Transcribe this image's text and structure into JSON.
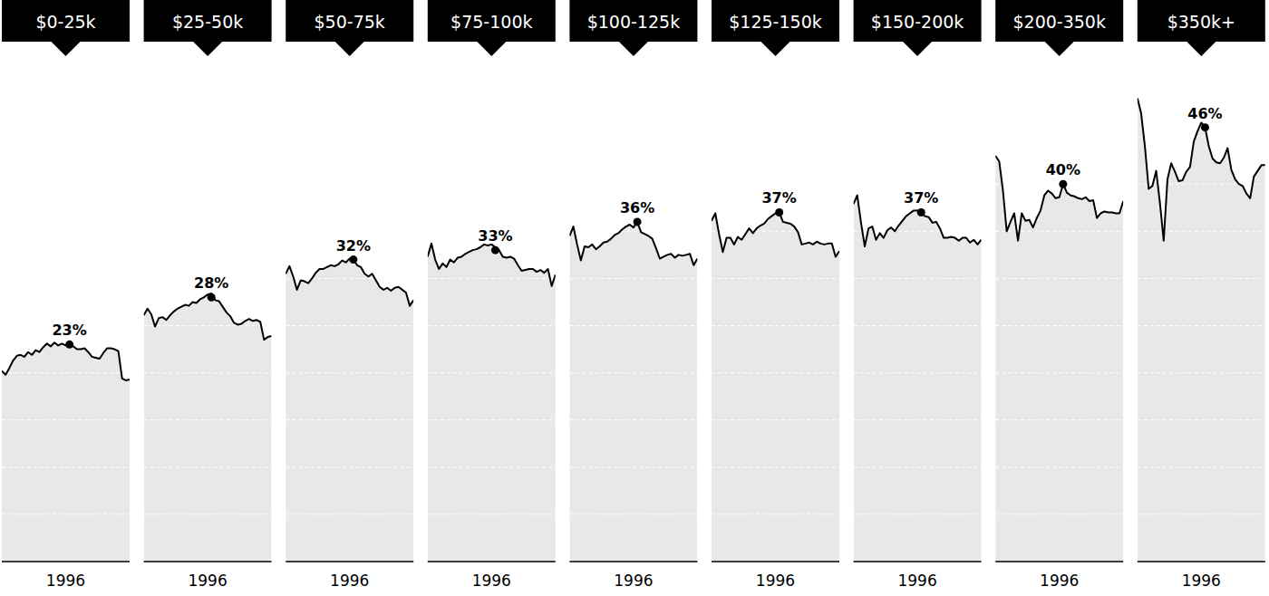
{
  "chart_data": [
    {
      "type": "area",
      "title": "$0-25k",
      "color": "#000000",
      "grid": true,
      "tick_labels": "x",
      "x": [
        1979,
        1980,
        1981,
        1982,
        1983,
        1984,
        1985,
        1986,
        1987,
        1988,
        1989,
        1990,
        1991,
        1992,
        1993,
        1994,
        1995,
        1996,
        1997,
        1998,
        1999,
        2000,
        2001,
        2002,
        2003,
        2004,
        2005,
        2006,
        2007,
        2008,
        2009,
        2010,
        2011,
        2012,
        2013
      ],
      "values": [
        20.2,
        19.8,
        20.5,
        21.3,
        21.8,
        21.9,
        21.7,
        22.2,
        21.9,
        22.4,
        22.2,
        22.7,
        23.1,
        22.8,
        23.2,
        22.9,
        23.1,
        22.9,
        23.0,
        22.8,
        22.5,
        22.5,
        22.6,
        22.2,
        21.7,
        21.6,
        21.5,
        22.1,
        22.6,
        22.6,
        22.5,
        22.3,
        19.4,
        19.2,
        19.3
      ],
      "xlim": [
        1979,
        2013
      ],
      "xticks": [
        1996
      ],
      "ylim": [
        0,
        50
      ],
      "yticks": [
        0,
        5,
        10,
        15,
        20,
        25,
        30,
        35,
        40,
        45,
        50
      ],
      "annotations": [
        {
          "x": 1997,
          "y": 23,
          "text": "23%"
        }
      ]
    },
    {
      "type": "area",
      "title": "$25-50k",
      "color": "#000000",
      "grid": true,
      "tick_labels": "x",
      "x": [
        1979,
        1980,
        1981,
        1982,
        1983,
        1984,
        1985,
        1986,
        1987,
        1988,
        1989,
        1990,
        1991,
        1992,
        1993,
        1994,
        1995,
        1996,
        1997,
        1998,
        1999,
        2000,
        2001,
        2002,
        2003,
        2004,
        2005,
        2006,
        2007,
        2008,
        2009,
        2010,
        2011,
        2012,
        2013
      ],
      "values": [
        26.1,
        26.8,
        26.2,
        24.9,
        25.8,
        25.9,
        25.6,
        26.1,
        26.5,
        26.8,
        27.0,
        27.2,
        27.1,
        27.5,
        27.4,
        27.8,
        28.0,
        28.3,
        28.4,
        27.7,
        27.6,
        27.0,
        26.4,
        26.0,
        25.3,
        25.1,
        25.2,
        25.5,
        25.7,
        25.5,
        25.6,
        25.4,
        23.5,
        23.8,
        23.9
      ],
      "xlim": [
        1979,
        2013
      ],
      "xticks": [
        1996
      ],
      "ylim": [
        0,
        50
      ],
      "yticks": [
        0,
        5,
        10,
        15,
        20,
        25,
        30,
        35,
        40,
        45,
        50
      ],
      "annotations": [
        {
          "x": 1997,
          "y": 28,
          "text": "28%"
        }
      ]
    },
    {
      "type": "area",
      "title": "$50-75k",
      "color": "#000000",
      "grid": true,
      "tick_labels": "x",
      "x": [
        1979,
        1980,
        1981,
        1982,
        1983,
        1984,
        1985,
        1986,
        1987,
        1988,
        1989,
        1990,
        1991,
        1992,
        1993,
        1994,
        1995,
        1996,
        1997,
        1998,
        1999,
        2000,
        2001,
        2002,
        2003,
        2004,
        2005,
        2006,
        2007,
        2008,
        2009,
        2010,
        2011,
        2012,
        2013
      ],
      "values": [
        30.5,
        31.3,
        30.2,
        28.8,
        29.8,
        29.7,
        29.5,
        30.0,
        30.6,
        31.0,
        31.0,
        31.2,
        31.4,
        31.3,
        31.5,
        31.9,
        31.7,
        32.1,
        32.0,
        31.4,
        31.2,
        30.5,
        30.2,
        30.5,
        29.8,
        29.1,
        28.8,
        29.0,
        28.7,
        29.0,
        29.1,
        28.8,
        28.5,
        27.1,
        27.7
      ],
      "xlim": [
        1979,
        2013
      ],
      "xticks": [
        1996
      ],
      "ylim": [
        0,
        50
      ],
      "yticks": [
        0,
        5,
        10,
        15,
        20,
        25,
        30,
        35,
        40,
        45,
        50
      ],
      "annotations": [
        {
          "x": 1997,
          "y": 32,
          "text": "32%"
        }
      ]
    },
    {
      "type": "area",
      "title": "$75-100k",
      "color": "#000000",
      "grid": true,
      "tick_labels": "x",
      "x": [
        1979,
        1980,
        1981,
        1982,
        1983,
        1984,
        1985,
        1986,
        1987,
        1988,
        1989,
        1990,
        1991,
        1992,
        1993,
        1994,
        1995,
        1996,
        1997,
        1998,
        1999,
        2000,
        2001,
        2002,
        2003,
        2004,
        2005,
        2006,
        2007,
        2008,
        2009,
        2010,
        2011,
        2012,
        2013
      ],
      "values": [
        32.3,
        33.7,
        32.0,
        31.0,
        31.6,
        31.2,
        32.0,
        31.7,
        32.2,
        32.3,
        32.6,
        32.8,
        33.0,
        33.1,
        33.3,
        33.6,
        33.5,
        33.6,
        33.3,
        33.0,
        32.3,
        32.2,
        32.3,
        32.1,
        31.4,
        30.8,
        30.9,
        31.0,
        31.0,
        30.7,
        30.9,
        30.6,
        31.0,
        29.2,
        30.4
      ],
      "xlim": [
        1979,
        2013
      ],
      "xticks": [
        1996
      ],
      "ylim": [
        0,
        50
      ],
      "yticks": [
        0,
        5,
        10,
        15,
        20,
        25,
        30,
        35,
        40,
        45,
        50
      ],
      "annotations": [
        {
          "x": 1997,
          "y": 33,
          "text": "33%"
        }
      ]
    },
    {
      "type": "area",
      "title": "$100-125k",
      "color": "#000000",
      "grid": true,
      "tick_labels": "x",
      "x": [
        1979,
        1980,
        1981,
        1982,
        1983,
        1984,
        1985,
        1986,
        1987,
        1988,
        1989,
        1990,
        1991,
        1992,
        1993,
        1994,
        1995,
        1996,
        1997,
        1998,
        1999,
        2000,
        2001,
        2002,
        2003,
        2004,
        2005,
        2006,
        2007,
        2008,
        2009,
        2010,
        2011,
        2012,
        2013
      ],
      "values": [
        34.5,
        35.5,
        33.6,
        31.9,
        33.4,
        33.3,
        33.6,
        33.1,
        33.4,
        33.8,
        33.9,
        34.2,
        34.6,
        34.8,
        35.2,
        35.5,
        35.7,
        35.4,
        36.0,
        34.9,
        34.7,
        34.5,
        34.2,
        33.2,
        32.1,
        32.3,
        32.5,
        32.6,
        32.2,
        32.5,
        32.4,
        32.5,
        32.6,
        31.4,
        32.1
      ],
      "xlim": [
        1979,
        2013
      ],
      "xticks": [
        1996
      ],
      "ylim": [
        0,
        50
      ],
      "yticks": [
        0,
        5,
        10,
        15,
        20,
        25,
        30,
        35,
        40,
        45,
        50
      ],
      "annotations": [
        {
          "x": 1997,
          "y": 36,
          "text": "36%"
        }
      ]
    },
    {
      "type": "area",
      "title": "$125-150k",
      "color": "#000000",
      "grid": true,
      "tick_labels": "x",
      "x": [
        1979,
        1980,
        1981,
        1982,
        1983,
        1984,
        1985,
        1986,
        1987,
        1988,
        1989,
        1990,
        1991,
        1992,
        1993,
        1994,
        1995,
        1996,
        1997,
        1998,
        1999,
        2000,
        2001,
        2002,
        2003,
        2004,
        2005,
        2006,
        2007,
        2008,
        2009,
        2010,
        2011,
        2012,
        2013
      ],
      "values": [
        36.1,
        36.9,
        34.7,
        32.8,
        34.3,
        34.3,
        33.6,
        34.4,
        34.1,
        34.7,
        35.3,
        34.8,
        35.3,
        35.6,
        35.8,
        36.3,
        36.6,
        36.9,
        37.0,
        36.0,
        35.9,
        35.8,
        35.5,
        34.9,
        33.6,
        33.7,
        33.8,
        33.6,
        33.9,
        33.7,
        33.6,
        33.7,
        33.7,
        32.3,
        32.9
      ],
      "xlim": [
        1979,
        2013
      ],
      "xticks": [
        1996
      ],
      "ylim": [
        0,
        50
      ],
      "yticks": [
        0,
        5,
        10,
        15,
        20,
        25,
        30,
        35,
        40,
        45,
        50
      ],
      "annotations": [
        {
          "x": 1997,
          "y": 37,
          "text": "37%"
        }
      ]
    },
    {
      "type": "area",
      "title": "$150-200k",
      "color": "#000000",
      "grid": true,
      "tick_labels": "x",
      "x": [
        1979,
        1980,
        1981,
        1982,
        1983,
        1984,
        1985,
        1986,
        1987,
        1988,
        1989,
        1990,
        1991,
        1992,
        1993,
        1994,
        1995,
        1996,
        1997,
        1998,
        1999,
        2000,
        2001,
        2002,
        2003,
        2004,
        2005,
        2006,
        2007,
        2008,
        2009,
        2010,
        2011,
        2012,
        2013
      ],
      "values": [
        37.9,
        38.8,
        35.9,
        33.4,
        35.3,
        35.5,
        34.1,
        34.8,
        34.3,
        35.1,
        35.4,
        35.0,
        35.6,
        36.1,
        36.6,
        36.9,
        37.2,
        37.2,
        37.0,
        36.6,
        36.5,
        35.9,
        36.0,
        35.3,
        34.3,
        34.3,
        34.4,
        34.3,
        34.0,
        34.3,
        34.3,
        33.8,
        34.1,
        33.6,
        34.1
      ],
      "xlim": [
        1979,
        2013
      ],
      "xticks": [
        1996
      ],
      "ylim": [
        0,
        50
      ],
      "yticks": [
        0,
        5,
        10,
        15,
        20,
        25,
        30,
        35,
        40,
        45,
        50
      ],
      "annotations": [
        {
          "x": 1997,
          "y": 37,
          "text": "37%"
        }
      ]
    },
    {
      "type": "area",
      "title": "$200-350k",
      "color": "#000000",
      "grid": true,
      "tick_labels": "x",
      "x": [
        1979,
        1980,
        1981,
        1982,
        1983,
        1984,
        1985,
        1986,
        1987,
        1988,
        1989,
        1990,
        1991,
        1992,
        1993,
        1994,
        1995,
        1996,
        1997,
        1998,
        1999,
        2000,
        2001,
        2002,
        2003,
        2004,
        2005,
        2006,
        2007,
        2008,
        2009,
        2010,
        2011,
        2012,
        2013
      ],
      "values": [
        43.0,
        42.4,
        39.3,
        35.0,
        36.0,
        36.9,
        34.0,
        36.9,
        36.1,
        36.2,
        35.4,
        36.4,
        37.2,
        38.8,
        39.3,
        39.0,
        38.5,
        38.6,
        40.0,
        39.1,
        38.8,
        38.7,
        38.5,
        38.4,
        38.6,
        38.2,
        38.3,
        36.4,
        36.9,
        37.1,
        37.0,
        37.0,
        36.9,
        36.9,
        38.2
      ],
      "xlim": [
        1979,
        2013
      ],
      "xticks": [
        1996
      ],
      "ylim": [
        0,
        50
      ],
      "yticks": [
        0,
        5,
        10,
        15,
        20,
        25,
        30,
        35,
        40,
        45,
        50
      ],
      "annotations": [
        {
          "x": 1997,
          "y": 40,
          "text": "40%"
        }
      ]
    },
    {
      "type": "area",
      "title": "$350k+",
      "color": "#000000",
      "grid": true,
      "tick_labels": "x",
      "x": [
        1979,
        1980,
        1981,
        1982,
        1983,
        1984,
        1985,
        1986,
        1987,
        1988,
        1989,
        1990,
        1991,
        1992,
        1993,
        1994,
        1995,
        1996,
        1997,
        1998,
        1999,
        2000,
        2001,
        2002,
        2003,
        2004,
        2005,
        2006,
        2007,
        2008,
        2009,
        2010,
        2011,
        2012,
        2013
      ],
      "values": [
        49.1,
        47.5,
        44.0,
        39.5,
        39.8,
        41.4,
        38.0,
        34.0,
        40.5,
        42.2,
        41.3,
        40.3,
        40.4,
        41.3,
        41.8,
        44.5,
        45.6,
        46.5,
        46.0,
        44.0,
        42.7,
        42.3,
        42.2,
        42.8,
        43.8,
        41.5,
        40.5,
        40.0,
        39.8,
        39.0,
        38.5,
        40.8,
        41.4,
        42.0,
        42.0
      ],
      "xlim": [
        1979,
        2013
      ],
      "xticks": [
        1996
      ],
      "ylim": [
        0,
        50
      ],
      "yticks": [
        0,
        5,
        10,
        15,
        20,
        25,
        30,
        35,
        40,
        45,
        50
      ],
      "annotations": [
        {
          "x": 1997,
          "y": 46,
          "text": "46%"
        }
      ]
    }
  ]
}
